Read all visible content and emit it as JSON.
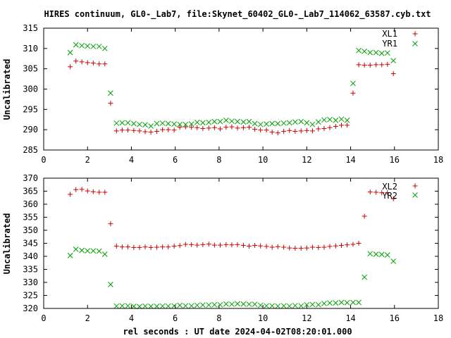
{
  "title": "HIRES continuum, GL0-_Lab7, file:Skynet_60402_GL0-_Lab7_114062_63587.cyb.txt",
  "xlabel": "rel seconds : UT date 2024-04-02T08:20:01.000",
  "colors": {
    "red": "#cc0000",
    "green": "#00a000"
  },
  "chart_data": [
    {
      "type": "scatter",
      "title": "HIRES continuum, GL0-_Lab7, file:Skynet_60402_GL0-_Lab7_114062_63587.cyb.txt",
      "xlabel": "",
      "ylabel": "Uncalibrated",
      "xlim": [
        0,
        18
      ],
      "ylim": [
        285,
        315
      ],
      "xticks": [
        0,
        2,
        4,
        6,
        8,
        10,
        12,
        14,
        16,
        18
      ],
      "yticks": [
        285,
        290,
        295,
        300,
        305,
        310,
        315
      ],
      "legend_position": "top-right",
      "series": [
        {
          "name": "XL1",
          "marker": "plus",
          "color": "#cc0000",
          "x": [
            1.21,
            1.47,
            1.74,
            2.0,
            2.26,
            2.53,
            2.79,
            3.05,
            3.32,
            3.58,
            3.84,
            4.11,
            4.37,
            4.63,
            4.89,
            5.16,
            5.42,
            5.68,
            5.95,
            6.21,
            6.47,
            6.74,
            7.0,
            7.26,
            7.53,
            7.79,
            8.05,
            8.32,
            8.58,
            8.84,
            9.11,
            9.37,
            9.63,
            9.89,
            10.16,
            10.42,
            10.68,
            10.95,
            11.21,
            11.47,
            11.74,
            12.0,
            12.26,
            12.53,
            12.79,
            13.05,
            13.32,
            13.58,
            13.84,
            14.11,
            14.37,
            14.63,
            14.89,
            15.16,
            15.42,
            15.68,
            15.95
          ],
          "y": [
            305.5,
            306.9,
            306.7,
            306.5,
            306.4,
            306.2,
            306.2,
            296.5,
            289.7,
            289.9,
            289.9,
            289.8,
            289.7,
            289.5,
            289.4,
            289.6,
            290.0,
            290.0,
            289.9,
            290.6,
            290.7,
            290.6,
            290.5,
            290.3,
            290.4,
            290.5,
            290.2,
            290.6,
            290.7,
            290.4,
            290.5,
            290.6,
            290.1,
            289.9,
            289.9,
            289.4,
            289.2,
            289.6,
            289.8,
            289.6,
            289.7,
            289.8,
            289.7,
            290.2,
            290.3,
            290.5,
            290.8,
            291.1,
            291.1,
            299.0,
            306.0,
            305.9,
            305.9,
            306.0,
            306.0,
            306.1,
            303.8
          ]
        },
        {
          "name": "YR1",
          "marker": "cross",
          "color": "#00a000",
          "x": [
            1.21,
            1.47,
            1.74,
            2.0,
            2.26,
            2.53,
            2.79,
            3.05,
            3.32,
            3.58,
            3.84,
            4.11,
            4.37,
            4.63,
            4.89,
            5.16,
            5.42,
            5.68,
            5.95,
            6.21,
            6.47,
            6.74,
            7.0,
            7.26,
            7.53,
            7.79,
            8.05,
            8.32,
            8.58,
            8.84,
            9.11,
            9.37,
            9.63,
            9.89,
            10.16,
            10.42,
            10.68,
            10.95,
            11.21,
            11.47,
            11.74,
            12.0,
            12.26,
            12.53,
            12.79,
            13.05,
            13.32,
            13.58,
            13.84,
            14.11,
            14.37,
            14.63,
            14.89,
            15.16,
            15.42,
            15.68,
            15.95
          ],
          "y": [
            309.0,
            310.9,
            310.7,
            310.6,
            310.5,
            310.5,
            310.0,
            299.0,
            291.6,
            291.7,
            291.7,
            291.5,
            291.3,
            291.2,
            290.9,
            291.5,
            291.6,
            291.5,
            291.4,
            291.3,
            291.3,
            291.4,
            291.8,
            291.7,
            291.8,
            292.0,
            292.0,
            292.3,
            292.1,
            292.0,
            291.9,
            292.0,
            291.5,
            291.3,
            291.4,
            291.5,
            291.5,
            291.6,
            291.7,
            291.9,
            292.0,
            291.7,
            291.3,
            291.9,
            292.4,
            292.5,
            292.3,
            292.6,
            292.3,
            301.4,
            309.5,
            309.3,
            309.0,
            309.0,
            308.8,
            308.9,
            307.0
          ]
        }
      ]
    },
    {
      "type": "scatter",
      "title": "",
      "xlabel": "rel seconds : UT date 2024-04-02T08:20:01.000",
      "ylabel": "Uncalibrated",
      "xlim": [
        0,
        18
      ],
      "ylim": [
        320,
        370
      ],
      "xticks": [
        0,
        2,
        4,
        6,
        8,
        10,
        12,
        14,
        16,
        18
      ],
      "yticks": [
        320,
        325,
        330,
        335,
        340,
        345,
        350,
        355,
        360,
        365,
        370
      ],
      "legend_position": "top-right",
      "series": [
        {
          "name": "XL2",
          "marker": "plus",
          "color": "#cc0000",
          "x": [
            1.21,
            1.47,
            1.74,
            2.0,
            2.26,
            2.53,
            2.79,
            3.05,
            3.32,
            3.58,
            3.84,
            4.11,
            4.37,
            4.63,
            4.89,
            5.16,
            5.42,
            5.68,
            5.95,
            6.21,
            6.47,
            6.74,
            7.0,
            7.26,
            7.53,
            7.79,
            8.05,
            8.32,
            8.58,
            8.84,
            9.11,
            9.37,
            9.63,
            9.89,
            10.16,
            10.42,
            10.68,
            10.95,
            11.21,
            11.47,
            11.74,
            12.0,
            12.26,
            12.53,
            12.79,
            13.05,
            13.32,
            13.58,
            13.84,
            14.11,
            14.37,
            14.63,
            14.89,
            15.16,
            15.42,
            15.68,
            15.95
          ],
          "y": [
            363.8,
            365.6,
            365.7,
            365.1,
            364.8,
            364.6,
            364.6,
            352.5,
            343.9,
            343.6,
            343.6,
            343.4,
            343.4,
            343.6,
            343.4,
            343.5,
            343.6,
            343.6,
            343.9,
            344.1,
            344.6,
            344.5,
            344.3,
            344.5,
            344.7,
            344.3,
            344.3,
            344.5,
            344.4,
            344.5,
            344.2,
            343.9,
            344.2,
            344.0,
            343.8,
            343.5,
            343.7,
            343.5,
            343.2,
            343.1,
            343.1,
            343.2,
            343.5,
            343.4,
            343.5,
            343.8,
            344.0,
            344.2,
            344.4,
            344.6,
            345.0,
            355.4,
            364.7,
            364.6,
            364.4,
            364.4,
            362.1
          ]
        },
        {
          "name": "YR2",
          "marker": "cross",
          "color": "#00a000",
          "x": [
            1.21,
            1.47,
            1.74,
            2.0,
            2.26,
            2.53,
            2.79,
            3.05,
            3.32,
            3.58,
            3.84,
            4.11,
            4.37,
            4.63,
            4.89,
            5.16,
            5.42,
            5.68,
            5.95,
            6.21,
            6.47,
            6.74,
            7.0,
            7.26,
            7.53,
            7.79,
            8.05,
            8.32,
            8.58,
            8.84,
            9.11,
            9.37,
            9.63,
            9.89,
            10.16,
            10.42,
            10.68,
            10.95,
            11.21,
            11.47,
            11.74,
            12.0,
            12.26,
            12.53,
            12.79,
            13.05,
            13.32,
            13.58,
            13.84,
            14.11,
            14.37,
            14.63,
            14.89,
            15.16,
            15.42,
            15.68,
            15.95
          ],
          "y": [
            340.3,
            342.7,
            342.3,
            342.1,
            342.1,
            342.0,
            340.8,
            329.2,
            320.9,
            321.0,
            321.0,
            320.8,
            320.7,
            320.9,
            320.8,
            320.8,
            320.9,
            320.9,
            321.0,
            321.2,
            321.0,
            321.0,
            321.2,
            321.3,
            321.3,
            321.4,
            321.4,
            321.7,
            321.6,
            321.8,
            321.7,
            321.6,
            321.6,
            321.2,
            321.0,
            321.0,
            320.9,
            321.0,
            320.9,
            321.1,
            321.0,
            321.4,
            321.5,
            321.4,
            321.9,
            322.1,
            322.1,
            322.3,
            322.2,
            322.3,
            322.3,
            332.0,
            341.0,
            340.8,
            340.7,
            340.5,
            338.1
          ]
        }
      ]
    }
  ]
}
